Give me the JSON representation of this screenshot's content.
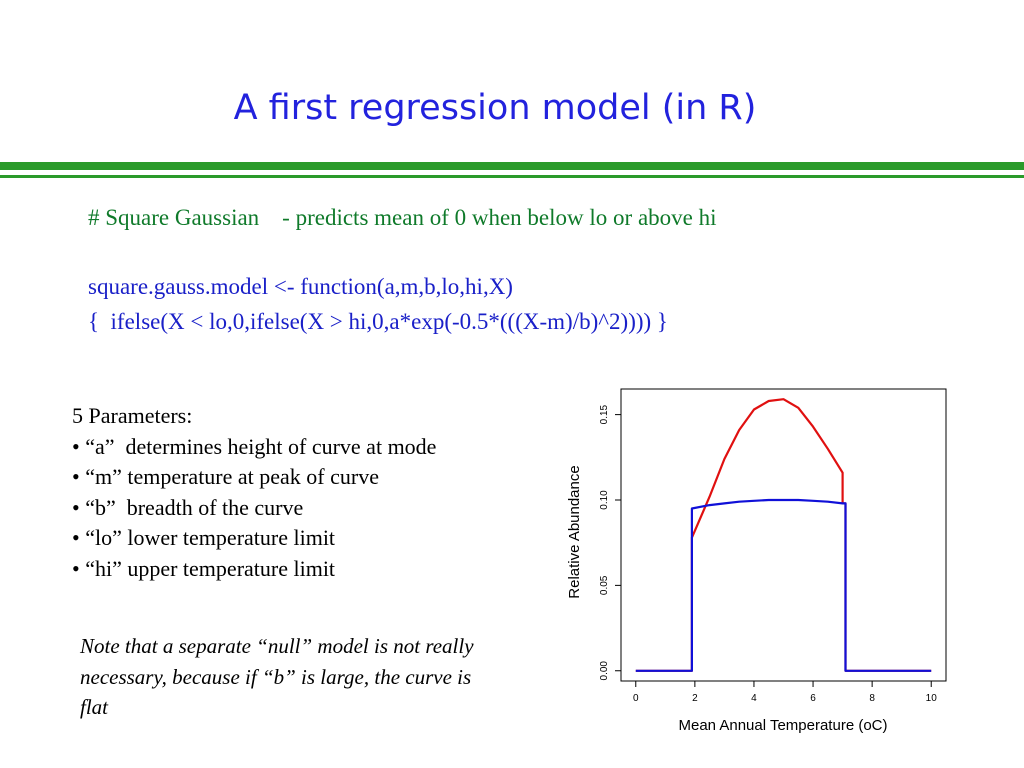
{
  "slide": {
    "title": "A first regression model (in R)",
    "comment_line": "# Square Gaussian    - predicts mean of 0 when below lo or above hi",
    "code_line1": "square.gauss.model <- function(a,m,b,lo,hi,X)",
    "code_line2": "{  ifelse(X < lo,0,ifelse(X > hi,0,a*exp(-0.5*(((X-m)/b)^2)))) }",
    "params": [
      "5 Parameters:",
      "• “a”  determines height of curve at mode",
      "• “m” temperature at peak of curve",
      "• “b”  breadth of the curve",
      "• “lo” lower temperature limit",
      "• “hi” upper temperature limit"
    ],
    "note": "Note that a separate “null” model is not really necessary, because if “b” is large, the curve is flat"
  },
  "colors": {
    "title": "#2222dd",
    "rule": "#2a9a2a",
    "comment": "#0f7a2a",
    "code": "#1a20c8",
    "red": "#e01010",
    "blue": "#1010d8"
  },
  "chart_data": {
    "type": "line",
    "xlabel": "Mean Annual Temperature (oC)",
    "ylabel": "Relative Abundance",
    "xlim": [
      -0.5,
      10.5
    ],
    "ylim": [
      -0.006,
      0.165
    ],
    "xticks": [
      0,
      2,
      4,
      6,
      8,
      10
    ],
    "yticks": [
      0.0,
      0.05,
      0.1,
      0.15
    ],
    "xtick_labels": [
      "0",
      "2",
      "4",
      "6",
      "8",
      "10"
    ],
    "ytick_labels": [
      "0.00",
      "0.05",
      "0.10",
      "0.15"
    ],
    "grid": false,
    "series": [
      {
        "color": "red",
        "x": [
          0,
          1.9,
          1.9,
          2.0,
          2.5,
          3.0,
          3.5,
          4.0,
          4.5,
          5.0,
          5.5,
          6.0,
          6.5,
          7.0,
          7.0,
          7.1,
          7.1,
          10
        ],
        "y": [
          0,
          0,
          0.078,
          0.082,
          0.102,
          0.124,
          0.141,
          0.153,
          0.158,
          0.159,
          0.154,
          0.143,
          0.13,
          0.116,
          0.098,
          0.098,
          0,
          0
        ]
      },
      {
        "color": "blue",
        "x": [
          0,
          1.9,
          1.9,
          2.5,
          3.0,
          3.5,
          4.0,
          4.5,
          5.0,
          5.5,
          6.0,
          6.5,
          7.0,
          7.1,
          7.1,
          10
        ],
        "y": [
          0,
          0,
          0.095,
          0.097,
          0.098,
          0.099,
          0.0995,
          0.1,
          0.1,
          0.1,
          0.0995,
          0.099,
          0.098,
          0.098,
          0,
          0
        ]
      }
    ]
  }
}
